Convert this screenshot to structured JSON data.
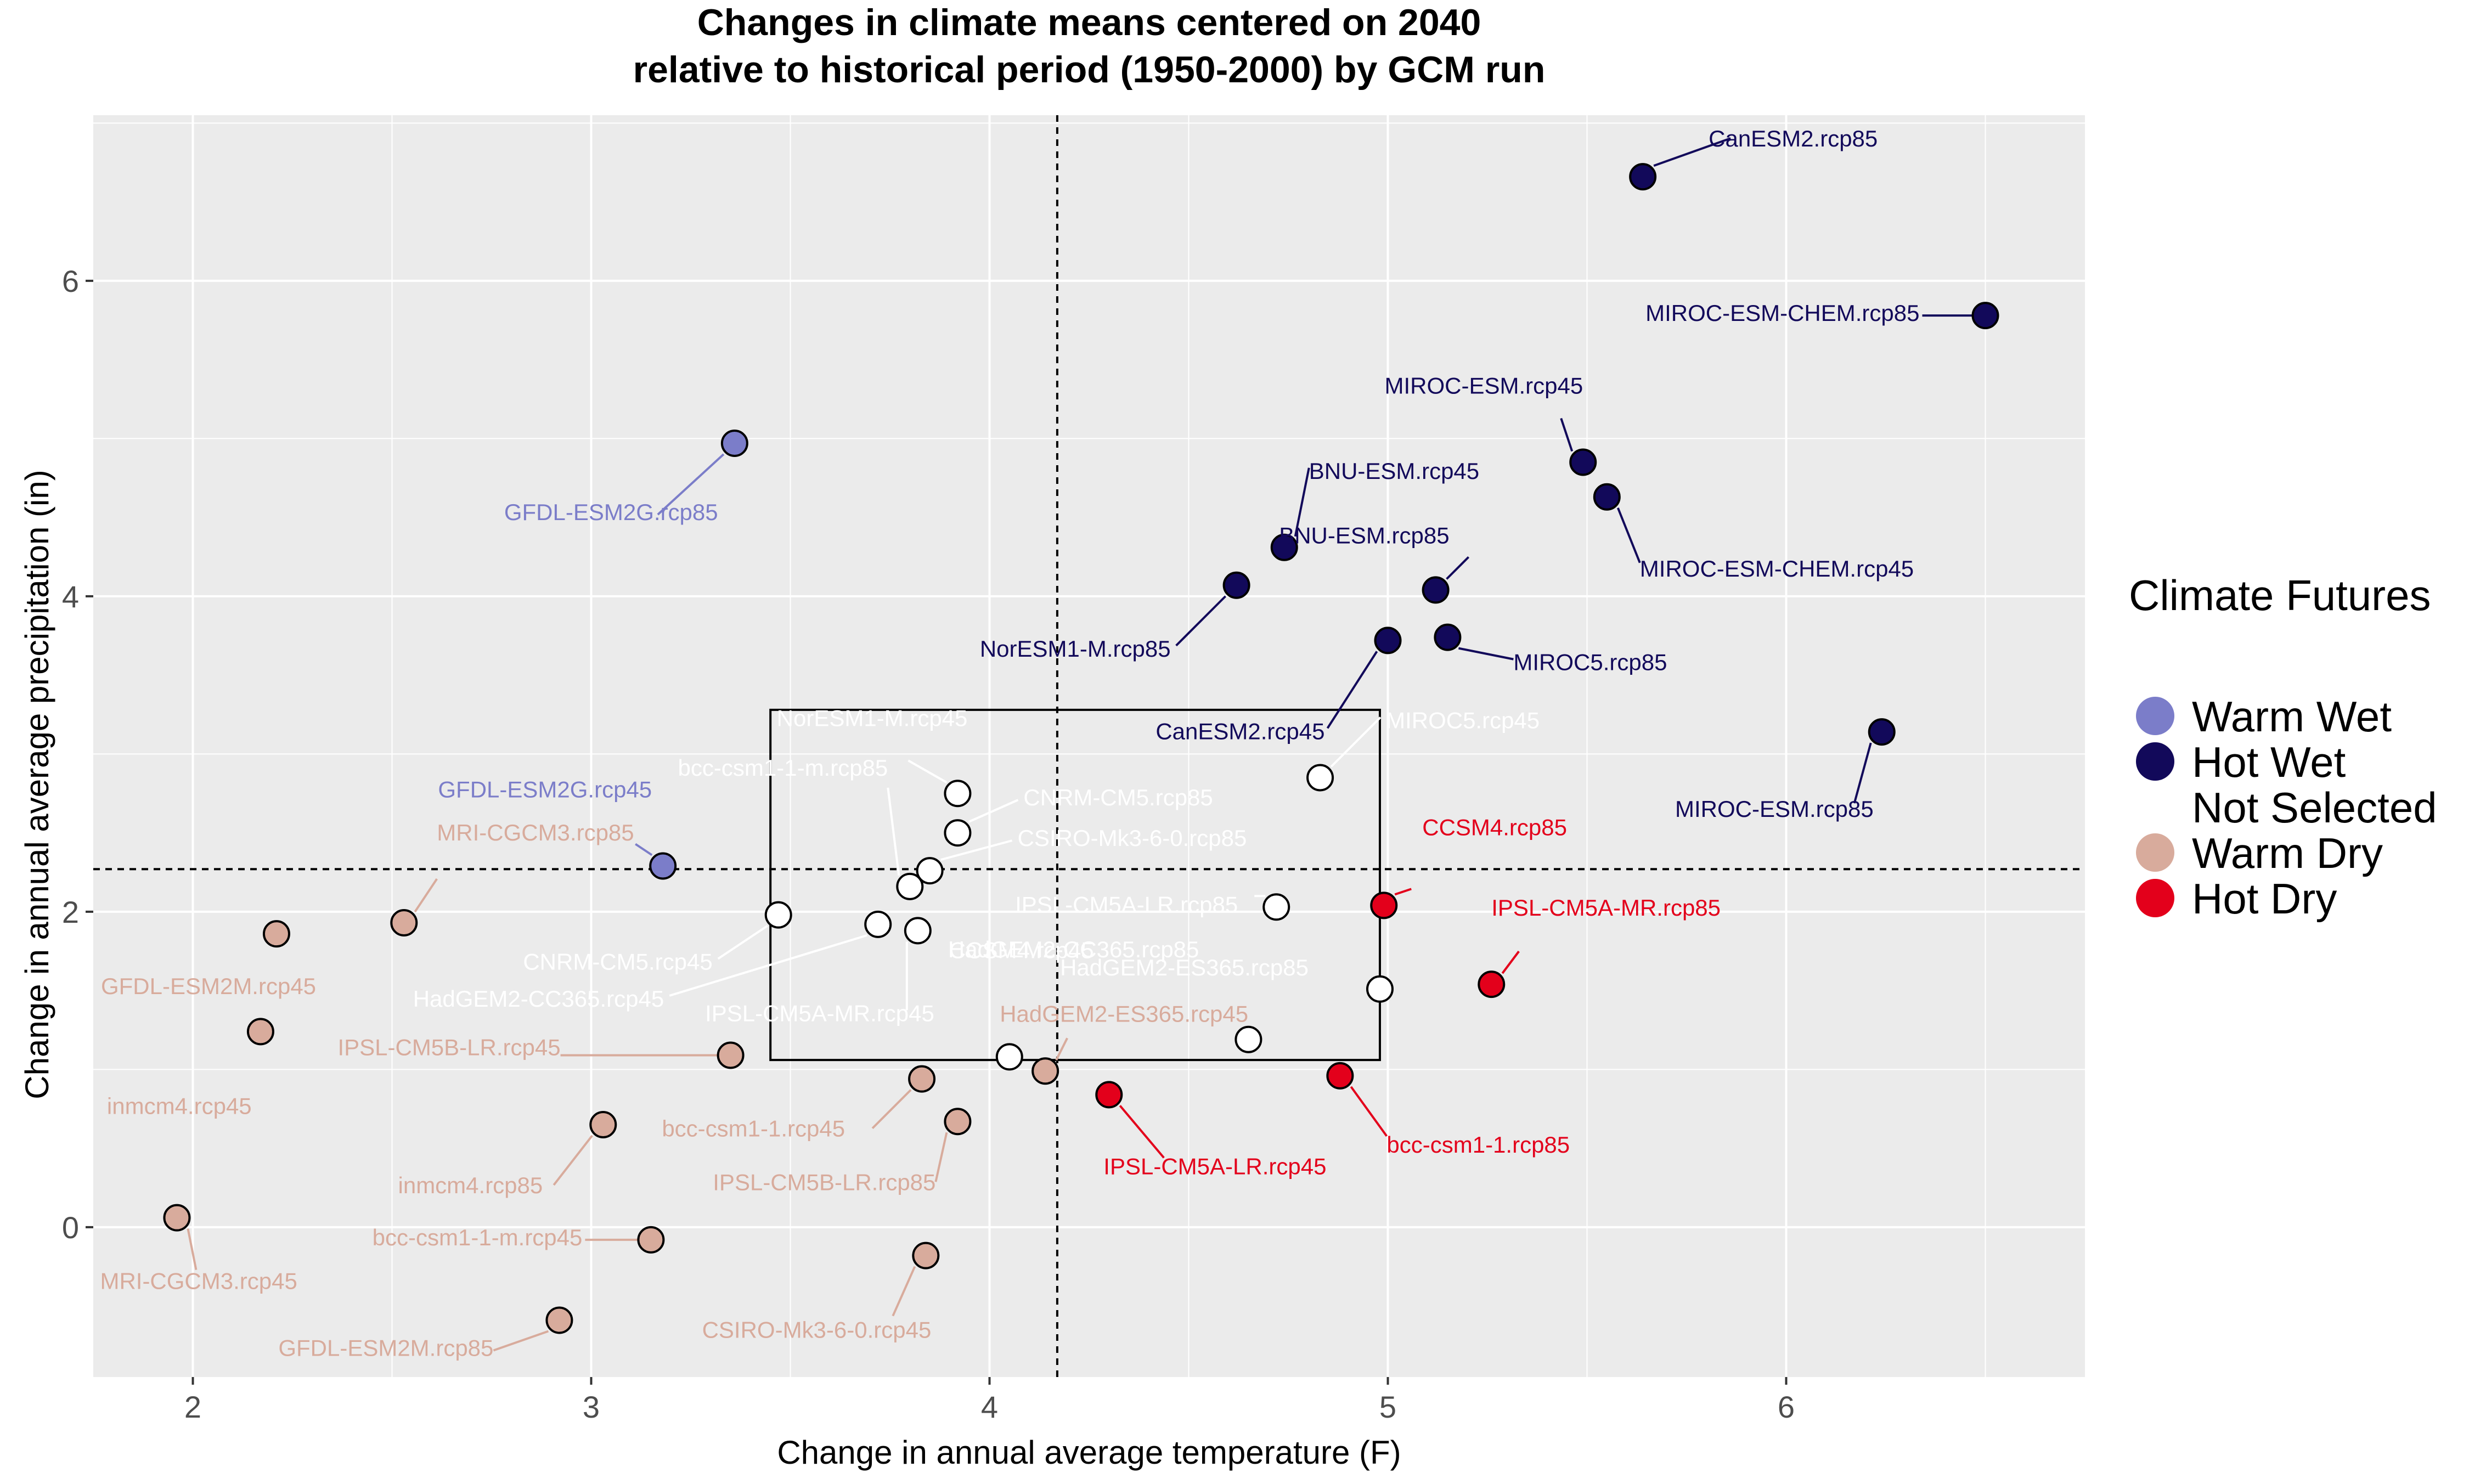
{
  "chart_data": {
    "type": "scatter",
    "title": "Changes in climate means centered on 2040",
    "subtitle": "relative to historical period (1950-2000) by GCM run",
    "xlabel": "Change in annual average temperature (F)",
    "ylabel": "Change in annual average precipitation (in)",
    "xlim": [
      1.75,
      6.75
    ],
    "ylim": [
      -0.95,
      7.05
    ],
    "x_ticks": [
      2,
      3,
      4,
      5,
      6
    ],
    "y_ticks": [
      0,
      2,
      4,
      6
    ],
    "grid": true,
    "reference_lines": {
      "vline_x": 4.17,
      "hline_y": 2.27
    },
    "not_selected_box": {
      "x": [
        3.45,
        4.98
      ],
      "y": [
        1.06,
        3.28
      ]
    },
    "legend": {
      "title": "Climate Futures",
      "position": "right",
      "entries": [
        {
          "name": "Warm Wet",
          "color": "#7b7dc9"
        },
        {
          "name": "Hot Wet",
          "color": "#12095a"
        },
        {
          "name": "Not Selected",
          "color": "#ffffff"
        },
        {
          "name": "Warm Dry",
          "color": "#d8ab9c"
        },
        {
          "name": "Hot Dry",
          "color": "#e3001b"
        }
      ]
    },
    "series": [
      {
        "name": "Warm Wet",
        "color": "#7b7dc9",
        "points": [
          {
            "label": "GFDL-ESM2G.rcp85",
            "x": 3.36,
            "y": 4.97
          },
          {
            "label": "GFDL-ESM2G.rcp45",
            "x": 3.18,
            "y": 2.29
          }
        ]
      },
      {
        "name": "Hot Wet",
        "color": "#12095a",
        "points": [
          {
            "label": "CanESM2.rcp85",
            "x": 5.64,
            "y": 6.66
          },
          {
            "label": "MIROC-ESM-CHEM.rcp85",
            "x": 6.5,
            "y": 5.78
          },
          {
            "label": "MIROC-ESM.rcp45",
            "x": 5.49,
            "y": 4.85
          },
          {
            "label": "MIROC-ESM-CHEM.rcp45",
            "x": 5.55,
            "y": 4.63
          },
          {
            "label": "BNU-ESM.rcp45",
            "x": 4.74,
            "y": 4.31
          },
          {
            "label": "NorESM1-M.rcp85",
            "x": 4.62,
            "y": 4.07
          },
          {
            "label": "BNU-ESM.rcp85",
            "x": 5.12,
            "y": 4.04
          },
          {
            "label": "CanESM2.rcp45",
            "x": 5.0,
            "y": 3.72
          },
          {
            "label": "MIROC5.rcp85",
            "x": 5.15,
            "y": 3.74
          },
          {
            "label": "MIROC-ESM.rcp85",
            "x": 6.24,
            "y": 3.14
          }
        ]
      },
      {
        "name": "Not Selected",
        "color": "#ffffff",
        "points": [
          {
            "label": "NorESM1-M.rcp45",
            "x": 3.92,
            "y": 2.75
          },
          {
            "label": "bcc-csm1-1-m.rcp85",
            "x": 3.8,
            "y": 2.16
          },
          {
            "label": "CNRM-CM5.rcp85",
            "x": 3.92,
            "y": 2.5
          },
          {
            "label": "CSIRO-Mk3-6-0.rcp85",
            "x": 3.85,
            "y": 2.26
          },
          {
            "label": "MIROC5.rcp45",
            "x": 4.83,
            "y": 2.85
          },
          {
            "label": "CNRM-CM5.rcp45",
            "x": 3.47,
            "y": 1.98
          },
          {
            "label": "HadGEM2-CC365.rcp45",
            "x": 3.72,
            "y": 1.92
          },
          {
            "label": "IPSL-CM5A-MR.rcp45",
            "x": 3.82,
            "y": 1.88
          },
          {
            "label": "IPSL-CM5A-LR.rcp85",
            "x": 4.72,
            "y": 2.03
          },
          {
            "label": "CCSM4.rcp45",
            "x": 4.05,
            "y": 1.08
          },
          {
            "label": "HadGEM2-CC365.rcp85",
            "x": 4.65,
            "y": 1.19
          },
          {
            "label": "HadGEM2-ES365.rcp85",
            "x": 4.98,
            "y": 1.51
          }
        ]
      },
      {
        "name": "Warm Dry",
        "color": "#d8ab9c",
        "points": [
          {
            "label": "MRI-CGCM3.rcp85",
            "x": 2.53,
            "y": 1.93
          },
          {
            "label": "GFDL-ESM2M.rcp45",
            "x": 2.21,
            "y": 1.86
          },
          {
            "label": "inmcm4.rcp45",
            "x": 2.17,
            "y": 1.24
          },
          {
            "label": "IPSL-CM5B-LR.rcp45",
            "x": 3.35,
            "y": 1.09
          },
          {
            "label": "HadGEM2-ES365.rcp45",
            "x": 4.14,
            "y": 0.99
          },
          {
            "label": "bcc-csm1-1.rcp45",
            "x": 3.83,
            "y": 0.94
          },
          {
            "label": "IPSL-CM5B-LR.rcp85",
            "x": 3.92,
            "y": 0.67
          },
          {
            "label": "inmcm4.rcp85",
            "x": 3.03,
            "y": 0.65
          },
          {
            "label": "MRI-CGCM3.rcp45",
            "x": 1.96,
            "y": 0.06
          },
          {
            "label": "bcc-csm1-1-m.rcp45",
            "x": 3.15,
            "y": -0.08
          },
          {
            "label": "CSIRO-Mk3-6-0.rcp45",
            "x": 3.84,
            "y": -0.18
          },
          {
            "label": "GFDL-ESM2M.rcp85",
            "x": 2.92,
            "y": -0.59
          }
        ]
      },
      {
        "name": "Hot Dry",
        "color": "#e3001b",
        "points": [
          {
            "label": "CCSM4.rcp85",
            "x": 4.99,
            "y": 2.04
          },
          {
            "label": "IPSL-CM5A-MR.rcp85",
            "x": 5.26,
            "y": 1.54
          },
          {
            "label": "IPSL-CM5A-LR.rcp45",
            "x": 4.3,
            "y": 0.84
          },
          {
            "label": "bcc-csm1-1.rcp85",
            "x": 4.88,
            "y": 0.96
          }
        ]
      }
    ]
  }
}
